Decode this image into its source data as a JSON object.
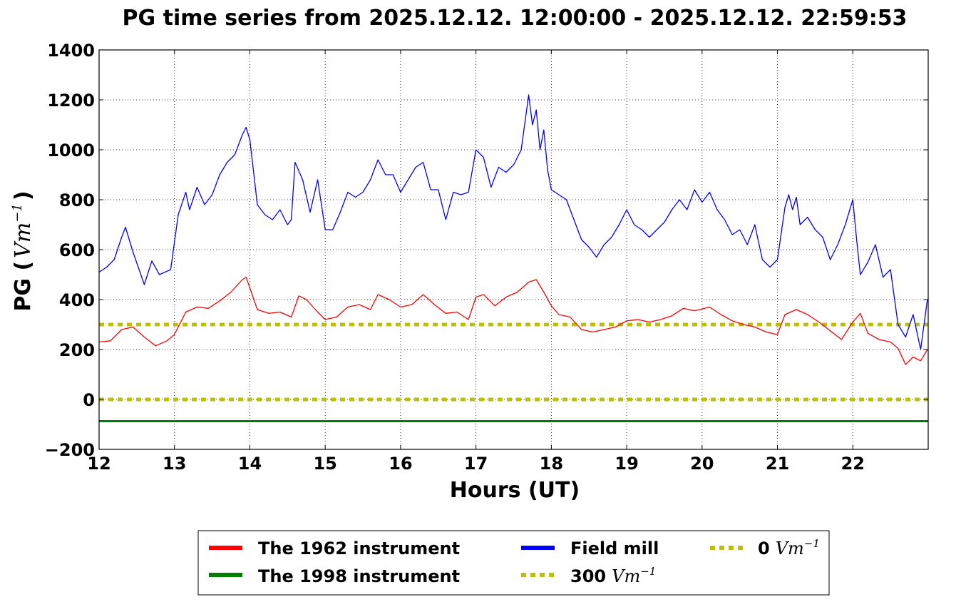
{
  "chart_data": {
    "type": "line",
    "title": "PG time series from 2025.12.12. 12:00:00 - 2025.12.12. 22:59:53",
    "xlabel": "Hours (UT)",
    "ylabel": "PG (",
    "ylabel_unit": "Vm",
    "ylabel_exp": "−1",
    "ylabel_close": ")",
    "xlim": [
      12,
      23
    ],
    "ylim": [
      -200,
      1400
    ],
    "xticks": [
      12,
      13,
      14,
      15,
      16,
      17,
      18,
      19,
      20,
      21,
      22
    ],
    "xtick_labels": [
      "12",
      "13",
      "14",
      "15",
      "16",
      "17",
      "18",
      "19",
      "20",
      "21",
      "22"
    ],
    "yticks": [
      -200,
      0,
      200,
      400,
      600,
      800,
      1000,
      1200,
      1400
    ],
    "ytick_labels": [
      "−200",
      "0",
      "200",
      "400",
      "600",
      "800",
      "1000",
      "1200",
      "1400"
    ],
    "grid": true,
    "legend_position": "below-center",
    "series": [
      {
        "name": "The 1962 instrument",
        "color": "#ff0000",
        "x": [
          12.0,
          12.15,
          12.3,
          12.45,
          12.6,
          12.75,
          12.9,
          13.0,
          13.15,
          13.3,
          13.45,
          13.6,
          13.75,
          13.9,
          13.95,
          14.1,
          14.25,
          14.4,
          14.55,
          14.65,
          14.75,
          14.9,
          15.0,
          15.15,
          15.3,
          15.45,
          15.6,
          15.7,
          15.85,
          16.0,
          16.15,
          16.3,
          16.45,
          16.6,
          16.75,
          16.9,
          17.0,
          17.1,
          17.25,
          17.4,
          17.55,
          17.7,
          17.8,
          17.9,
          18.0,
          18.1,
          18.25,
          18.4,
          18.55,
          18.7,
          18.85,
          19.0,
          19.15,
          19.3,
          19.45,
          19.6,
          19.75,
          19.9,
          20.1,
          20.25,
          20.4,
          20.55,
          20.7,
          20.85,
          21.0,
          21.1,
          21.25,
          21.4,
          21.55,
          21.7,
          21.85,
          22.0,
          22.1,
          22.2,
          22.35,
          22.5,
          22.6,
          22.7,
          22.8,
          22.9,
          22.99
        ],
        "values": [
          230,
          235,
          280,
          290,
          250,
          215,
          235,
          260,
          350,
          370,
          365,
          395,
          430,
          480,
          490,
          360,
          345,
          350,
          330,
          415,
          400,
          350,
          320,
          330,
          370,
          380,
          360,
          420,
          400,
          370,
          380,
          420,
          380,
          345,
          350,
          320,
          410,
          420,
          375,
          410,
          430,
          470,
          480,
          430,
          375,
          340,
          330,
          280,
          270,
          280,
          290,
          315,
          320,
          310,
          320,
          335,
          365,
          355,
          370,
          340,
          315,
          300,
          290,
          270,
          260,
          340,
          360,
          340,
          310,
          275,
          240,
          310,
          345,
          265,
          240,
          230,
          205,
          140,
          170,
          155,
          200
        ],
        "width": 1.3
      },
      {
        "name": "The 1998 instrument",
        "color": "#008000",
        "x": [
          12.0,
          23.0
        ],
        "values": [
          -87,
          -87
        ],
        "width": 3
      },
      {
        "name": "Field mill",
        "color": "#0000ff",
        "x": [
          12.0,
          12.1,
          12.2,
          12.3,
          12.35,
          12.45,
          12.6,
          12.7,
          12.8,
          12.95,
          13.05,
          13.15,
          13.2,
          13.3,
          13.4,
          13.5,
          13.6,
          13.7,
          13.8,
          13.9,
          13.95,
          14.0,
          14.1,
          14.2,
          14.3,
          14.4,
          14.5,
          14.55,
          14.6,
          14.7,
          14.8,
          14.9,
          15.0,
          15.1,
          15.2,
          15.3,
          15.4,
          15.5,
          15.6,
          15.7,
          15.8,
          15.9,
          16.0,
          16.1,
          16.2,
          16.3,
          16.4,
          16.5,
          16.6,
          16.7,
          16.8,
          16.9,
          17.0,
          17.1,
          17.2,
          17.3,
          17.4,
          17.5,
          17.6,
          17.7,
          17.75,
          17.8,
          17.85,
          17.9,
          17.95,
          18.0,
          18.1,
          18.2,
          18.3,
          18.4,
          18.5,
          18.6,
          18.7,
          18.8,
          18.9,
          19.0,
          19.1,
          19.2,
          19.3,
          19.4,
          19.5,
          19.6,
          19.7,
          19.8,
          19.9,
          20.0,
          20.1,
          20.2,
          20.3,
          20.4,
          20.5,
          20.6,
          20.7,
          20.8,
          20.9,
          21.0,
          21.1,
          21.15,
          21.2,
          21.25,
          21.3,
          21.4,
          21.5,
          21.6,
          21.7,
          21.8,
          21.9,
          22.0,
          22.05,
          22.1,
          22.2,
          22.3,
          22.4,
          22.5,
          22.6,
          22.7,
          22.8,
          22.9,
          22.99
        ],
        "values": [
          510,
          530,
          560,
          650,
          690,
          590,
          460,
          555,
          500,
          520,
          740,
          830,
          760,
          850,
          780,
          820,
          900,
          950,
          980,
          1060,
          1090,
          1040,
          780,
          740,
          720,
          760,
          700,
          720,
          950,
          880,
          750,
          880,
          680,
          680,
          750,
          830,
          810,
          830,
          880,
          960,
          900,
          900,
          830,
          880,
          930,
          950,
          840,
          840,
          720,
          830,
          820,
          830,
          1000,
          970,
          850,
          930,
          910,
          940,
          1000,
          1220,
          1100,
          1160,
          1000,
          1080,
          920,
          840,
          820,
          800,
          720,
          640,
          610,
          570,
          620,
          650,
          700,
          760,
          700,
          680,
          650,
          680,
          710,
          760,
          800,
          760,
          840,
          790,
          830,
          760,
          720,
          660,
          680,
          620,
          700,
          560,
          530,
          560,
          770,
          820,
          760,
          810,
          700,
          730,
          680,
          650,
          560,
          620,
          700,
          800,
          640,
          500,
          550,
          620,
          490,
          520,
          300,
          250,
          340,
          200,
          400
        ]
      },
      {
        "name": "300",
        "name_unit": "Vm",
        "name_exp": "−1",
        "color": "#bfbf00",
        "dashed": true,
        "x": [
          12.0,
          23.0
        ],
        "values": [
          300,
          300
        ]
      },
      {
        "name": "0",
        "name_unit": "Vm",
        "name_exp": "−1",
        "color": "#bfbf00",
        "dashed": true,
        "x": [
          12.0,
          23.0
        ],
        "values": [
          0,
          0
        ]
      }
    ]
  }
}
